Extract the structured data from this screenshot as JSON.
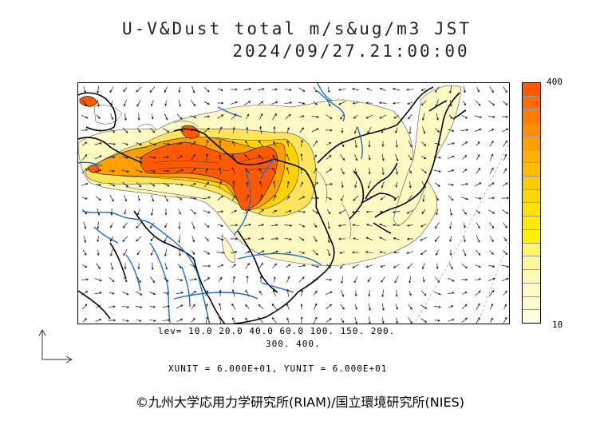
{
  "title": {
    "line1": "U-V&Dust total m/s&ug/m3 JST",
    "line2": "2024/09/27.21:00:00"
  },
  "colorbar": {
    "max_label": "400",
    "min_label": "10",
    "colors": [
      "#ff5a00",
      "#ff6a00",
      "#ff7c00",
      "#ff8e00",
      "#ffa000",
      "#ffb000",
      "#ffbf00",
      "#ffcc00",
      "#ffd700",
      "#ffe100",
      "#ffea00",
      "#fff200",
      "#fff566",
      "#fff7a0",
      "#fff9b8",
      "#fffbc6",
      "#fffcd2",
      "#fffde0"
    ]
  },
  "levels": {
    "line1": "lev= 10.0 20.0 40.0 60.0 100. 150. 200.",
    "line2": "300. 400."
  },
  "units": "XUNIT = 6.000E+01, YUNIT = 6.000E+01",
  "credit": "©九州大学応用力学研究所(RIAM)/国立環境研究所(NIES)"
}
